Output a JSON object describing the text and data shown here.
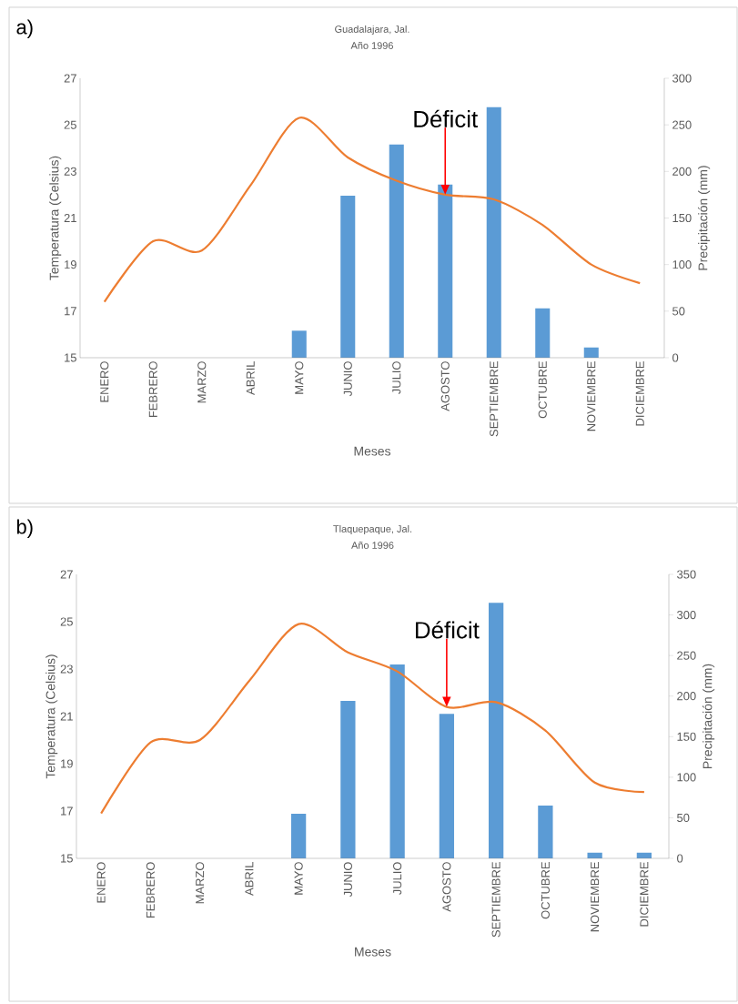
{
  "chart_data": [
    {
      "type": "bar",
      "title": "Guadalajara, Jal.",
      "subtitle": "Año 1996",
      "xlabel": "Meses",
      "ylabel": "Temperatura (Celsius)",
      "y2label": "Precipitación (mm)",
      "categories": [
        "ENERO",
        "FEBRERO",
        "MARZO",
        "ABRIL",
        "MAYO",
        "JUNIO",
        "JULIO",
        "AGOSTO",
        "SEPTIEMBRE",
        "OCTUBRE",
        "NOVIEMBRE",
        "DICIEMBRE"
      ],
      "series": [
        {
          "axis": "y2",
          "color": "#5b9bd5",
          "values": [
            0,
            0,
            0,
            0,
            29,
            174,
            229,
            186,
            269,
            53,
            11,
            0
          ]
        },
        {
          "type": "line",
          "color": "#ed7d31",
          "values": [
            17.4,
            20.0,
            19.6,
            22.4,
            25.3,
            23.6,
            22.6,
            22.0,
            21.8,
            20.7,
            19.0,
            18.2
          ]
        }
      ],
      "ylim": [
        15,
        27
      ],
      "yticks": [
        15,
        17,
        19,
        21,
        23,
        25,
        27
      ],
      "y2lim": [
        0,
        300
      ],
      "y2ticks": [
        0,
        50,
        100,
        150,
        200,
        250,
        300
      ],
      "annotations": [
        "a)",
        {
          "text": "Déficit",
          "x": "AGOSTO",
          "y": 22.0
        }
      ]
    },
    {
      "type": "bar",
      "title": "Tlaquepaque, Jal.",
      "subtitle": "Año 1996",
      "xlabel": "Meses",
      "ylabel": "Temperatura (Celsius)",
      "y2label": "Precipitación (mm)",
      "categories": [
        "ENERO",
        "FEBRERO",
        "MARZO",
        "ABRIL",
        "MAYO",
        "JUNIO",
        "JULIO",
        "AGOSTO",
        "SEPTIEMBRE",
        "OCTUBRE",
        "NOVIEMBRE",
        "DICIEMBRE"
      ],
      "series": [
        {
          "axis": "y2",
          "color": "#5b9bd5",
          "values": [
            0,
            0,
            0,
            0,
            55,
            194,
            239,
            178,
            315,
            65,
            7,
            7
          ]
        },
        {
          "type": "line",
          "color": "#ed7d31",
          "values": [
            16.9,
            19.9,
            20.0,
            22.5,
            24.9,
            23.7,
            22.9,
            21.4,
            21.6,
            20.4,
            18.2,
            17.8
          ]
        }
      ],
      "ylim": [
        15,
        27
      ],
      "yticks": [
        15,
        17,
        19,
        21,
        23,
        25,
        27
      ],
      "y2lim": [
        0,
        350
      ],
      "y2ticks": [
        0,
        50,
        100,
        150,
        200,
        250,
        300,
        350
      ],
      "annotations": [
        "b)",
        {
          "text": "Déficit",
          "x": "AGOSTO",
          "y": 21.4
        }
      ]
    }
  ]
}
